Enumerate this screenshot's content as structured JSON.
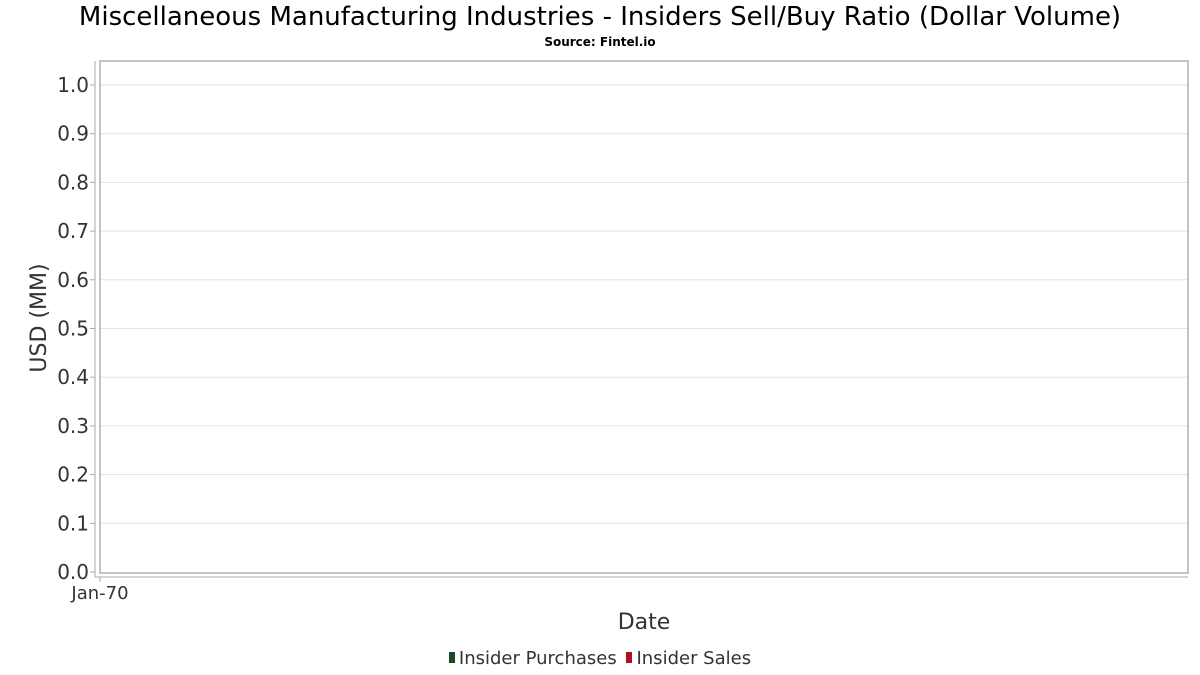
{
  "chart_data": {
    "type": "bar",
    "title": "Miscellaneous Manufacturing Industries - Insiders Sell/Buy Ratio (Dollar Volume)",
    "subtitle": "Source: Fintel.io",
    "xlabel": "Date",
    "ylabel": "USD (MM)",
    "x_tick_labels": [
      "Jan-70"
    ],
    "y_ticks": [
      "0.0",
      "0.1",
      "0.2",
      "0.3",
      "0.4",
      "0.5",
      "0.6",
      "0.7",
      "0.8",
      "0.9",
      "1.0"
    ],
    "ylim": [
      0,
      1.05
    ],
    "grid": true,
    "legend_position": "bottom",
    "series": [
      {
        "name": "Insider Purchases",
        "color": "#1a4a2a",
        "values": []
      },
      {
        "name": "Insider Sales",
        "color": "#b01020",
        "values": []
      }
    ]
  }
}
